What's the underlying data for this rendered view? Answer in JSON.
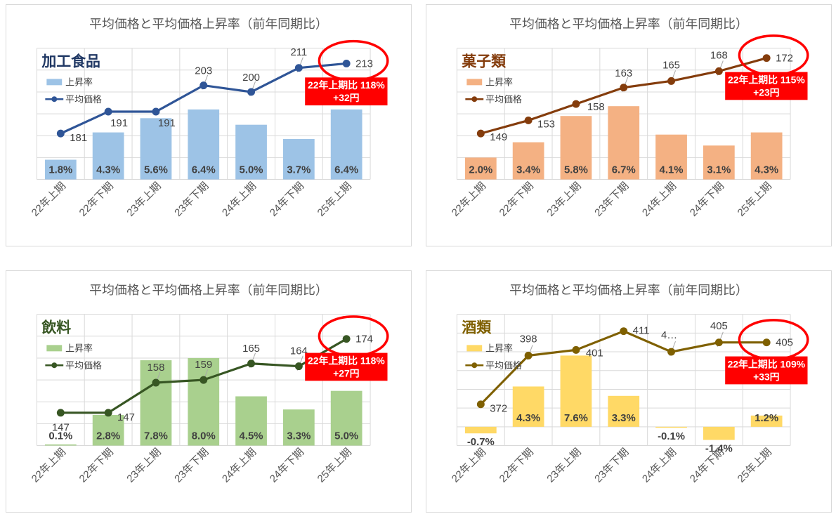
{
  "page_title": "平均価格と平均価格上昇率（前年同期比）",
  "shared": {
    "categories": [
      "22年上期",
      "22年下期",
      "23年上期",
      "23年下期",
      "24年上期",
      "24年下期",
      "25年上期"
    ],
    "legend": {
      "bar_label": "上昇率",
      "line_label": "平均価格"
    },
    "text_colors": {
      "title": "#595959",
      "data_label": "#404040",
      "axis_label": "#595959",
      "gridline": "#D9D9D9",
      "annotation_red": "#FF0000"
    }
  },
  "chart_data": [
    {
      "type": "bar+line",
      "panel": "top-left",
      "title": "平均価格と平均価格上昇率（前年同期比）",
      "category_label": "加工食品",
      "categories": [
        "22年上期",
        "22年下期",
        "23年上期",
        "23年下期",
        "24年上期",
        "24年下期",
        "25年上期"
      ],
      "series": [
        {
          "name": "上昇率",
          "type": "bar",
          "axis": "rate",
          "unit": "%",
          "values": [
            1.8,
            4.3,
            5.6,
            6.4,
            5.0,
            3.7,
            6.4
          ],
          "labels": [
            "1.8%",
            "4.3%",
            "5.6%",
            "6.4%",
            "5.0%",
            "3.7%",
            "6.4%"
          ]
        },
        {
          "name": "平均価格",
          "type": "line",
          "axis": "price",
          "unit": "円",
          "values": [
            181,
            191,
            191,
            203,
            200,
            211,
            213
          ],
          "labels": [
            "181",
            "191",
            "191",
            "203",
            "200",
            "211",
            "213"
          ]
        }
      ],
      "price_axis": {
        "min": 160,
        "max": 220
      },
      "rate_axis": {
        "min": 0,
        "max": 12,
        "step": 2
      },
      "grid": true,
      "legend_position": "inside-top-left",
      "colors": {
        "bar": "#9DC3E6",
        "line": "#2F5597",
        "category_label": "#203864"
      },
      "annotation": {
        "ellipse_on_last_point": true,
        "callout_line1": "22年上期比 118%",
        "callout_line2": "+32円",
        "color": "#FF0000"
      },
      "label_placements": [
        [
          13,
          11,
          "start",
          0
        ],
        [
          3,
          21,
          "start",
          0
        ],
        [
          3,
          21,
          "start",
          0
        ],
        [
          0,
          -16,
          "middle",
          1
        ],
        [
          0,
          -16,
          "middle",
          1
        ],
        [
          0,
          -18,
          "middle",
          1
        ],
        [
          13,
          5,
          "start",
          0
        ]
      ]
    },
    {
      "type": "bar+line",
      "panel": "top-right",
      "title": "平均価格と平均価格上昇率（前年同期比）",
      "category_label": "菓子類",
      "categories": [
        "22年上期",
        "22年下期",
        "23年上期",
        "23年下期",
        "24年上期",
        "24年下期",
        "25年上期"
      ],
      "series": [
        {
          "name": "上昇率",
          "type": "bar",
          "axis": "rate",
          "unit": "%",
          "values": [
            2.0,
            3.4,
            5.8,
            6.7,
            4.1,
            3.1,
            4.3
          ],
          "labels": [
            "2.0%",
            "3.4%",
            "5.8%",
            "6.7%",
            "4.1%",
            "3.1%",
            "4.3%"
          ]
        },
        {
          "name": "平均価格",
          "type": "line",
          "axis": "price",
          "unit": "円",
          "values": [
            149,
            153,
            158,
            163,
            165,
            168,
            172
          ],
          "labels": [
            "149",
            "153",
            "158",
            "163",
            "165",
            "168",
            "172"
          ]
        }
      ],
      "price_axis": {
        "min": 135,
        "max": 175
      },
      "rate_axis": {
        "min": 0,
        "max": 12,
        "step": 2
      },
      "grid": true,
      "legend_position": "inside-top-left",
      "colors": {
        "bar": "#F4B183",
        "line": "#843C0C",
        "category_label": "#843C0C"
      },
      "annotation": {
        "ellipse_on_last_point": true,
        "callout_line1": "22年上期比 115%",
        "callout_line2": "+23円",
        "color": "#FF0000"
      },
      "label_placements": [
        [
          13,
          10,
          "start",
          0
        ],
        [
          13,
          10,
          "start",
          0
        ],
        [
          16,
          9,
          "start",
          0
        ],
        [
          0,
          -16,
          "middle",
          1
        ],
        [
          0,
          -18,
          "middle",
          1
        ],
        [
          0,
          -18,
          "middle",
          1
        ],
        [
          13,
          5,
          "start",
          0
        ]
      ]
    },
    {
      "type": "bar+line",
      "panel": "bottom-left",
      "title": "平均価格と平均価格上昇率（前年同期比）",
      "category_label": "飲料",
      "categories": [
        "22年上期",
        "22年下期",
        "23年上期",
        "23年下期",
        "24年上期",
        "24年下期",
        "25年上期"
      ],
      "series": [
        {
          "name": "上昇率",
          "type": "bar",
          "axis": "rate",
          "unit": "%",
          "values": [
            0.1,
            2.8,
            7.8,
            8.0,
            4.5,
            3.3,
            5.0
          ],
          "labels": [
            "0.1%",
            "2.8%",
            "7.8%",
            "8.0%",
            "4.5%",
            "3.3%",
            "5.0%"
          ]
        },
        {
          "name": "平均価格",
          "type": "line",
          "axis": "price",
          "unit": "円",
          "values": [
            147,
            147,
            158,
            159,
            165,
            164,
            174
          ],
          "labels": [
            "147",
            "147",
            "158",
            "159",
            "165",
            "164",
            "174"
          ]
        }
      ],
      "price_axis": {
        "min": 135,
        "max": 183
      },
      "rate_axis": {
        "min": 0,
        "max": 12,
        "step": 2
      },
      "grid": true,
      "legend_position": "inside-top-left",
      "colors": {
        "bar": "#A9D08E",
        "line": "#375623",
        "category_label": "#375623"
      },
      "annotation": {
        "ellipse_on_last_point": true,
        "callout_line1": "22年上期比 118%",
        "callout_line2": "+27円",
        "color": "#FF0000"
      },
      "label_placements": [
        [
          0,
          26,
          "middle",
          0
        ],
        [
          13,
          11,
          "start",
          0
        ],
        [
          0,
          -17,
          "middle",
          1
        ],
        [
          0,
          -17,
          "middle",
          1
        ],
        [
          0,
          -17,
          "middle",
          1
        ],
        [
          0,
          -17,
          "middle",
          1
        ],
        [
          13,
          5,
          "start",
          0
        ]
      ]
    },
    {
      "type": "bar+line",
      "panel": "bottom-right",
      "title": "平均価格と平均価格上昇率（前年同期比）",
      "category_label": "酒類",
      "categories": [
        "22年上期",
        "22年下期",
        "23年上期",
        "23年下期",
        "24年上期",
        "24年下期",
        "25年上期"
      ],
      "series": [
        {
          "name": "上昇率",
          "type": "bar",
          "axis": "rate",
          "unit": "%",
          "values": [
            -0.7,
            4.3,
            7.6,
            3.3,
            -0.1,
            -1.4,
            1.2
          ],
          "labels": [
            "-0.7%",
            "4.3%",
            "7.6%",
            "3.3%",
            "-0.1%",
            "-1.4%",
            "1.2%"
          ]
        },
        {
          "name": "平均価格",
          "type": "line",
          "axis": "price",
          "unit": "円",
          "values": [
            372,
            398,
            401,
            411,
            400,
            405,
            405
          ],
          "labels": [
            "372",
            "398",
            "401",
            "411",
            "4…",
            "405",
            "405"
          ]
        }
      ],
      "price_axis": {
        "min": 350,
        "max": 420
      },
      "rate_axis": {
        "min": -2,
        "max": 12,
        "step": 2
      },
      "grid": true,
      "legend_position": "inside-top-left",
      "colors": {
        "bar": "#FFD966",
        "line": "#7F6000",
        "category_label": "#7F6000"
      },
      "annotation": {
        "ellipse_on_last_point": true,
        "callout_line1": "22年上期比 109%",
        "callout_line2": "+33円",
        "color": "#FF0000"
      },
      "label_placements": [
        [
          13,
          11,
          "start",
          0
        ],
        [
          0,
          -19,
          "middle",
          1
        ],
        [
          14,
          9,
          "start",
          0
        ],
        [
          13,
          4,
          "start",
          0
        ],
        [
          -3,
          -19,
          "middle",
          1
        ],
        [
          0,
          -19,
          "middle",
          1
        ],
        [
          13,
          5,
          "start",
          0
        ]
      ]
    }
  ]
}
